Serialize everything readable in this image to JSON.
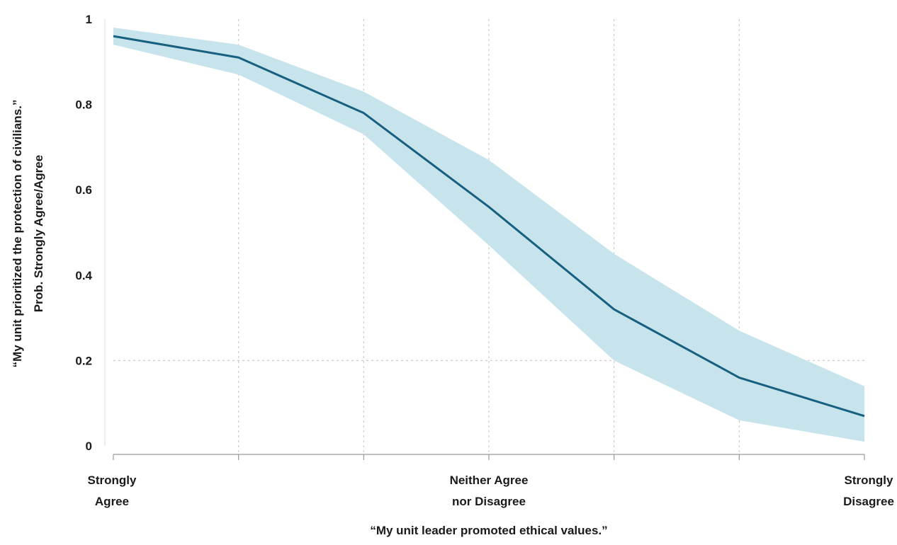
{
  "chart_data": {
    "type": "line",
    "xlabel": "“My unit leader promoted ethical values.”",
    "ylabel_line1": "“My unit prioritized the protection of civilians.”",
    "ylabel_line2": "Prob. Strongly Agree/Agree",
    "x": [
      1,
      2,
      3,
      4,
      5,
      6,
      7
    ],
    "xlim": [
      1,
      7
    ],
    "ylim": [
      0,
      1
    ],
    "x_tick_labels": [
      {
        "x": 1,
        "lines": [
          "Strongly",
          "Agree"
        ]
      },
      {
        "x": 4,
        "lines": [
          "Neither Agree",
          "nor Disagree"
        ]
      },
      {
        "x": 7,
        "lines": [
          "Strongly",
          "Disagree"
        ]
      }
    ],
    "y_ticks": [
      0,
      0.2,
      0.4,
      0.6,
      0.8,
      1
    ],
    "y_tick_labels": [
      "0",
      "0.2",
      "0.4",
      "0.6",
      "0.8",
      "1"
    ],
    "series": [
      {
        "values": [
          0.96,
          0.91,
          0.78,
          0.56,
          0.32,
          0.16,
          0.07
        ],
        "lower": [
          0.94,
          0.87,
          0.73,
          0.47,
          0.2,
          0.06,
          0.01
        ],
        "upper": [
          0.98,
          0.94,
          0.83,
          0.67,
          0.45,
          0.27,
          0.14
        ]
      }
    ],
    "grid": true,
    "line_color": "#17607f",
    "band_color": "#c7e3ec",
    "grid_color": "#cccccc"
  }
}
